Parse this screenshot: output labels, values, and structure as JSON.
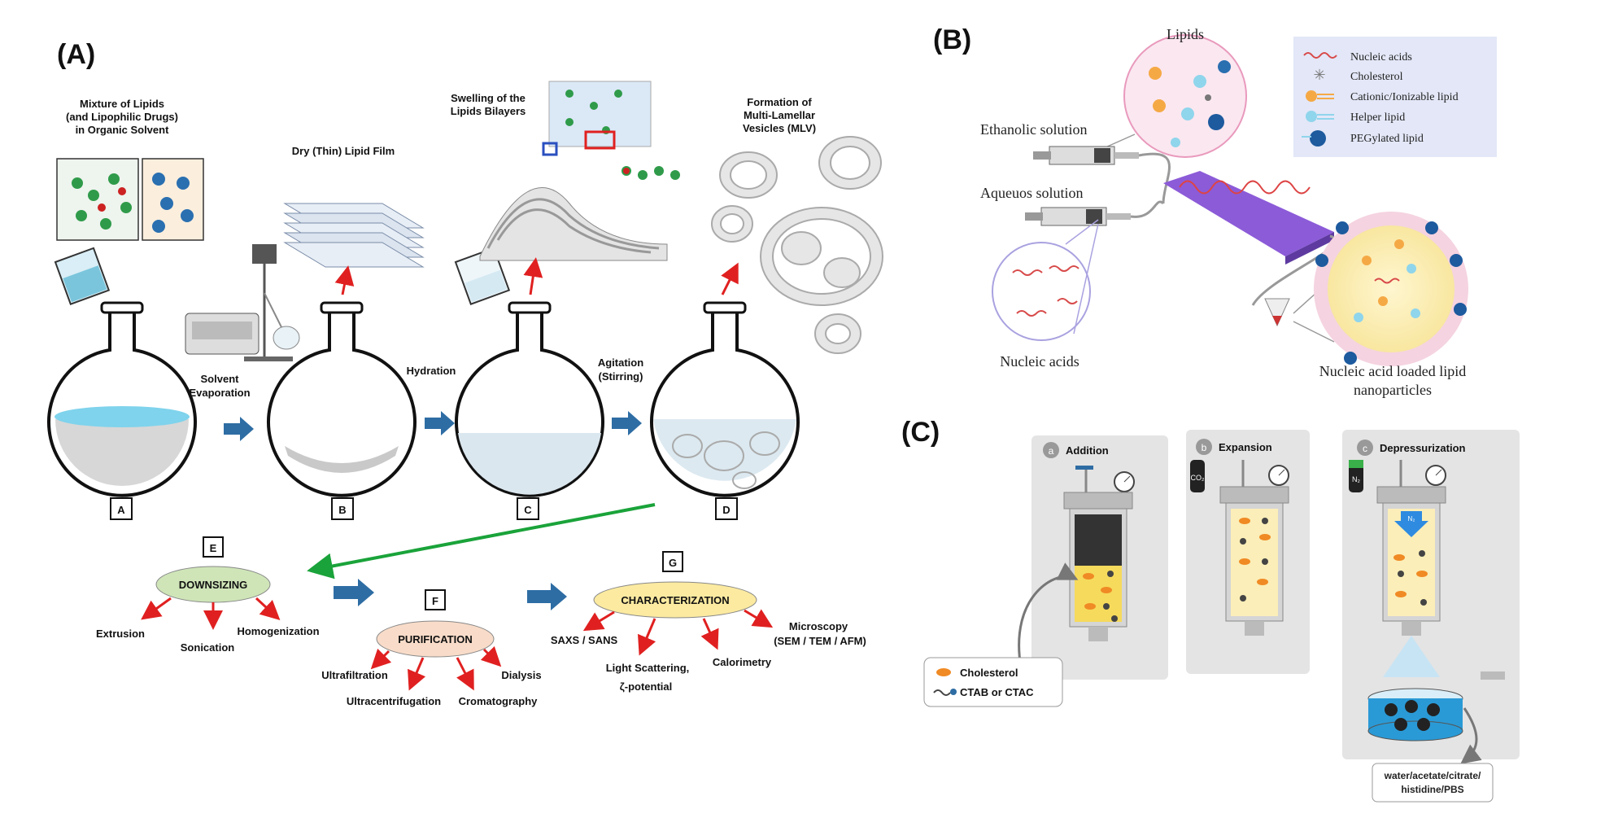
{
  "panels": {
    "A": {
      "label": "(A)",
      "step_titles": {
        "mixture": [
          "Mixture of Lipids",
          "(and Lipophilic Drugs)",
          "in Organic Solvent"
        ],
        "dry_film": "Dry (Thin) Lipid Film",
        "swelling": [
          "Swelling of the",
          "Lipids Bilayers"
        ],
        "mlv": [
          "Formation of",
          "Multi-Lamellar",
          "Vesicles (MLV)"
        ]
      },
      "process_labels": {
        "solvent_evaporation": [
          "Solvent",
          "Evaporation"
        ],
        "hydration": "Hydration",
        "agitation": [
          "Agitation",
          "(Stirring)"
        ]
      },
      "flask_letters": [
        "A",
        "B",
        "C",
        "D"
      ],
      "downsizing": {
        "box_letter": "E",
        "title": "DOWNSIZING",
        "methods": [
          "Extrusion",
          "Sonication",
          "Homogenization"
        ]
      },
      "purification": {
        "box_letter": "F",
        "title": "PURIFICATION",
        "methods": [
          "Ultrafiltration",
          "Ultracentrifugation",
          "Cromatography",
          "Dialysis"
        ]
      },
      "characterization": {
        "box_letter": "G",
        "title": "CHARACTERIZATION",
        "methods": [
          "SAXS / SANS",
          "Light Scattering,",
          "ζ-potential",
          "Calorimetry",
          "Microscopy",
          "(SEM / TEM / AFM)"
        ]
      }
    },
    "B": {
      "label": "(B)",
      "lipids_title": "Lipids",
      "ethanolic": "Ethanolic solution",
      "aqueous": "Aqueuos solution",
      "nucleic_acids": "Nucleic acids",
      "product": [
        "Nucleic acid loaded lipid",
        "nanoparticles"
      ],
      "legend": [
        "Nucleic acids",
        "Cholesterol",
        "Cationic/Ionizable lipid",
        "Helper lipid",
        "PEGylated lipid"
      ]
    },
    "C": {
      "label": "(C)",
      "stages": [
        {
          "letter": "a",
          "title": "Addition"
        },
        {
          "letter": "b",
          "title": "Expansion"
        },
        {
          "letter": "c",
          "title": "Depressurization"
        }
      ],
      "legend": [
        "Cholesterol",
        "CTAB or CTAC"
      ],
      "gas_labels": [
        "CO₂",
        "N₂",
        "N₂"
      ],
      "buffer": [
        "water/acetate/citrate/",
        "histidine/PBS"
      ]
    }
  },
  "colors": {
    "red_arrow": "#e02020",
    "blue_arrow": "#2e6da4",
    "green_arrow": "#1aa33a",
    "downsizing_fill": "#cfe5b8",
    "purification_fill": "#f8dcc9",
    "characterization_fill": "#fbeaa0",
    "microfluidic": "#8c5bd8",
    "panel_c_bg": "#e4e4e4"
  }
}
